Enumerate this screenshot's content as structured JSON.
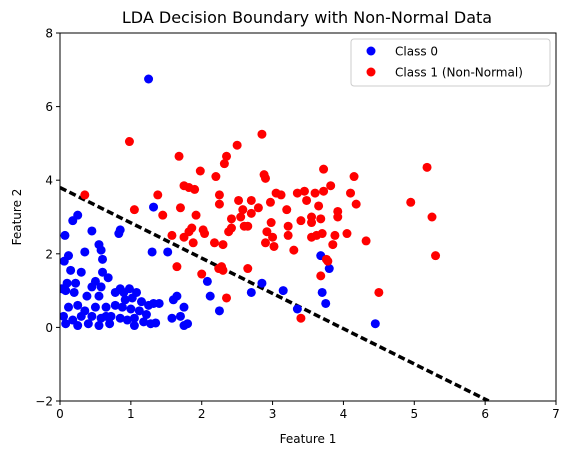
{
  "chart_data": {
    "type": "scatter",
    "title": "LDA Decision Boundary with Non-Normal Data",
    "xlabel": "Feature 1",
    "ylabel": "Feature 2",
    "xlim": [
      0,
      7
    ],
    "ylim": [
      -2,
      8
    ],
    "xticks": [
      0,
      1,
      2,
      3,
      4,
      5,
      6,
      7
    ],
    "yticks": [
      -2,
      0,
      2,
      4,
      6,
      8
    ],
    "grid": false,
    "legend_position": "top-right",
    "decision_boundary": {
      "style": "dashed",
      "color": "#000000",
      "points": [
        [
          0,
          3.8
        ],
        [
          6.05,
          -2.0
        ]
      ]
    },
    "series": [
      {
        "name": "Class 0",
        "color": "#0000ff",
        "points": [
          [
            1.25,
            6.75
          ],
          [
            1.32,
            3.27
          ],
          [
            0.25,
            3.05
          ],
          [
            0.18,
            2.9
          ],
          [
            0.45,
            2.62
          ],
          [
            0.07,
            2.5
          ],
          [
            0.55,
            2.25
          ],
          [
            0.58,
            2.1
          ],
          [
            0.6,
            1.85
          ],
          [
            0.35,
            2.05
          ],
          [
            0.85,
            2.65
          ],
          [
            0.83,
            2.55
          ],
          [
            1.3,
            2.05
          ],
          [
            1.52,
            2.05
          ],
          [
            0.12,
            1.95
          ],
          [
            0.06,
            1.8
          ],
          [
            0.15,
            1.55
          ],
          [
            0.3,
            1.5
          ],
          [
            0.6,
            1.5
          ],
          [
            0.5,
            1.25
          ],
          [
            0.68,
            1.35
          ],
          [
            0.1,
            1.2
          ],
          [
            0.22,
            1.2
          ],
          [
            0.45,
            1.1
          ],
          [
            0.58,
            1.1
          ],
          [
            0.03,
            1.05
          ],
          [
            0.08,
            1.0
          ],
          [
            0.2,
            0.95
          ],
          [
            0.38,
            0.85
          ],
          [
            0.55,
            0.85
          ],
          [
            0.78,
            0.95
          ],
          [
            0.85,
            1.05
          ],
          [
            0.9,
            0.95
          ],
          [
            0.98,
            1.05
          ],
          [
            1.08,
            0.95
          ],
          [
            0.92,
            0.75
          ],
          [
            1.02,
            0.8
          ],
          [
            1.15,
            0.7
          ],
          [
            0.5,
            0.55
          ],
          [
            0.25,
            0.6
          ],
          [
            0.12,
            0.55
          ],
          [
            0.35,
            0.45
          ],
          [
            0.65,
            0.55
          ],
          [
            0.78,
            0.6
          ],
          [
            0.88,
            0.55
          ],
          [
            1.0,
            0.5
          ],
          [
            1.12,
            0.45
          ],
          [
            1.25,
            0.6
          ],
          [
            1.32,
            0.65
          ],
          [
            1.4,
            0.65
          ],
          [
            1.22,
            0.35
          ],
          [
            0.3,
            0.3
          ],
          [
            0.05,
            0.3
          ],
          [
            0.18,
            0.2
          ],
          [
            0.45,
            0.3
          ],
          [
            0.58,
            0.25
          ],
          [
            0.72,
            0.3
          ],
          [
            0.85,
            0.25
          ],
          [
            0.95,
            0.2
          ],
          [
            1.05,
            0.25
          ],
          [
            1.18,
            0.15
          ],
          [
            1.28,
            0.1
          ],
          [
            1.35,
            0.12
          ],
          [
            0.08,
            0.1
          ],
          [
            0.25,
            0.05
          ],
          [
            0.4,
            0.1
          ],
          [
            0.55,
            0.05
          ],
          [
            0.7,
            0.1
          ],
          [
            1.05,
            0.05
          ],
          [
            0.65,
            0.3
          ],
          [
            1.6,
            0.75
          ],
          [
            1.65,
            0.85
          ],
          [
            1.75,
            0.55
          ],
          [
            1.58,
            0.25
          ],
          [
            1.7,
            0.3
          ],
          [
            1.8,
            0.1
          ],
          [
            1.75,
            0.05
          ],
          [
            2.08,
            1.25
          ],
          [
            2.12,
            0.85
          ],
          [
            2.25,
            0.45
          ],
          [
            2.7,
            0.95
          ],
          [
            2.85,
            1.2
          ],
          [
            3.15,
            1.0
          ],
          [
            3.35,
            0.5
          ],
          [
            3.68,
            1.95
          ],
          [
            3.8,
            1.6
          ],
          [
            3.7,
            0.95
          ],
          [
            3.75,
            0.65
          ],
          [
            4.45,
            0.1
          ]
        ]
      },
      {
        "name": "Class 1 (Non-Normal)",
        "color": "#ff0000",
        "points": [
          [
            0.35,
            3.6
          ],
          [
            0.98,
            5.05
          ],
          [
            1.05,
            3.2
          ],
          [
            1.38,
            3.6
          ],
          [
            1.45,
            3.05
          ],
          [
            1.58,
            2.5
          ],
          [
            1.65,
            1.65
          ],
          [
            1.68,
            4.65
          ],
          [
            1.7,
            3.25
          ],
          [
            1.75,
            3.85
          ],
          [
            1.82,
            3.8
          ],
          [
            1.75,
            2.45
          ],
          [
            1.82,
            2.6
          ],
          [
            1.86,
            2.7
          ],
          [
            1.88,
            2.3
          ],
          [
            1.9,
            3.75
          ],
          [
            1.92,
            3.05
          ],
          [
            1.98,
            4.25
          ],
          [
            2.02,
            2.65
          ],
          [
            2.04,
            2.55
          ],
          [
            2.0,
            1.45
          ],
          [
            2.2,
            4.1
          ],
          [
            2.25,
            3.6
          ],
          [
            2.25,
            3.35
          ],
          [
            2.18,
            2.3
          ],
          [
            2.24,
            1.6
          ],
          [
            2.3,
            1.55
          ],
          [
            2.28,
            1.65
          ],
          [
            2.3,
            2.25
          ],
          [
            2.32,
            4.45
          ],
          [
            2.35,
            4.65
          ],
          [
            2.38,
            2.6
          ],
          [
            2.42,
            2.95
          ],
          [
            2.42,
            2.7
          ],
          [
            2.35,
            0.8
          ],
          [
            2.5,
            4.95
          ],
          [
            2.52,
            3.45
          ],
          [
            2.55,
            3.0
          ],
          [
            2.58,
            3.2
          ],
          [
            2.6,
            2.75
          ],
          [
            2.65,
            1.6
          ],
          [
            2.65,
            2.75
          ],
          [
            2.7,
            3.45
          ],
          [
            2.7,
            3.1
          ],
          [
            2.8,
            3.25
          ],
          [
            2.85,
            5.25
          ],
          [
            2.88,
            4.15
          ],
          [
            2.9,
            4.05
          ],
          [
            2.9,
            2.3
          ],
          [
            2.92,
            2.6
          ],
          [
            2.98,
            2.85
          ],
          [
            2.97,
            3.4
          ],
          [
            3.0,
            2.45
          ],
          [
            3.02,
            2.2
          ],
          [
            3.05,
            3.65
          ],
          [
            3.12,
            3.6
          ],
          [
            3.2,
            3.2
          ],
          [
            3.22,
            2.75
          ],
          [
            3.22,
            2.5
          ],
          [
            3.3,
            2.1
          ],
          [
            3.35,
            3.65
          ],
          [
            3.4,
            2.9
          ],
          [
            3.45,
            3.7
          ],
          [
            3.48,
            3.45
          ],
          [
            3.55,
            3.0
          ],
          [
            3.55,
            2.85
          ],
          [
            3.55,
            2.45
          ],
          [
            3.6,
            3.65
          ],
          [
            3.62,
            2.5
          ],
          [
            3.65,
            3.3
          ],
          [
            3.68,
            2.95
          ],
          [
            3.7,
            2.55
          ],
          [
            3.72,
            4.3
          ],
          [
            3.72,
            3.7
          ],
          [
            3.76,
            1.85
          ],
          [
            3.78,
            1.8
          ],
          [
            3.82,
            3.85
          ],
          [
            3.85,
            2.25
          ],
          [
            3.88,
            2.5
          ],
          [
            3.92,
            3.15
          ],
          [
            3.92,
            3.0
          ],
          [
            3.68,
            1.4
          ],
          [
            4.05,
            2.55
          ],
          [
            4.1,
            3.65
          ],
          [
            4.15,
            4.1
          ],
          [
            4.18,
            3.35
          ],
          [
            4.32,
            2.35
          ],
          [
            4.5,
            0.95
          ],
          [
            4.95,
            3.4
          ],
          [
            5.18,
            4.35
          ],
          [
            5.25,
            3.0
          ],
          [
            5.3,
            1.95
          ],
          [
            3.4,
            0.25
          ]
        ]
      }
    ]
  }
}
